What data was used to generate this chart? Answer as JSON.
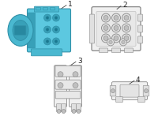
{
  "bg_color": "#ffffff",
  "blue_fill": "#5cc8e0",
  "blue_mid": "#4ab8d0",
  "blue_dark": "#38a0b8",
  "blue_edge": "#3090a8",
  "gray_fill": "#f0f0f0",
  "gray_mid": "#e0e0e0",
  "gray_dark": "#c0c0c0",
  "gray_edge": "#888888",
  "dark_edge": "#555555",
  "label_color": "#222222",
  "font_size": 6.5,
  "part1_label": "1",
  "part2_label": "2",
  "part3_label": "3",
  "part4_label": "4"
}
